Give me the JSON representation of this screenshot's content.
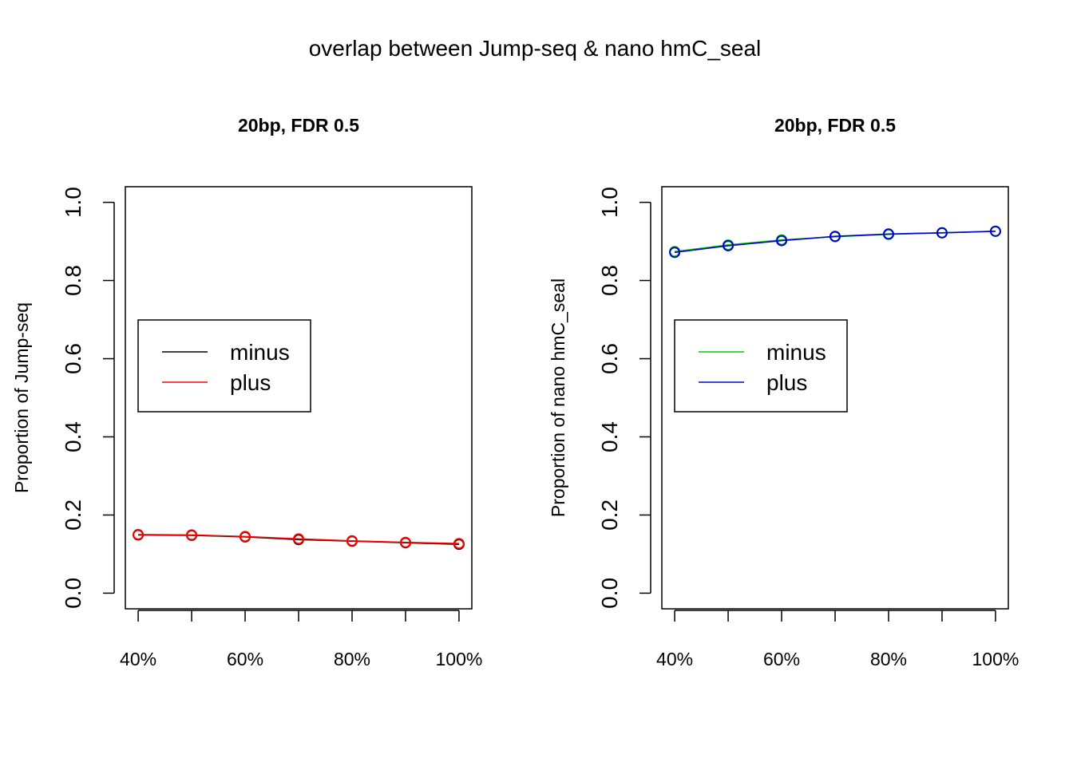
{
  "figure": {
    "title": "overlap between Jump-seq & nano hmC_seal"
  },
  "chart_data": [
    {
      "type": "line",
      "title": "20bp, FDR 0.5",
      "xlabel": "",
      "ylabel": "Proportion of Jump-seq",
      "x": [
        40,
        50,
        60,
        70,
        80,
        90,
        100
      ],
      "xlim": [
        37.6,
        102.4
      ],
      "x_tick_values": [
        40,
        50,
        60,
        70,
        80,
        90,
        100
      ],
      "x_tick_labels": [
        "40%",
        "60%",
        "80%",
        "100%"
      ],
      "x_tick_label_values": [
        40,
        60,
        80,
        100
      ],
      "ylim": [
        -0.04,
        1.04
      ],
      "y_ticks": [
        0.0,
        0.2,
        0.4,
        0.6,
        0.8,
        1.0
      ],
      "y_tick_labels": [
        "0.0",
        "0.2",
        "0.4",
        "0.6",
        "0.8",
        "1.0"
      ],
      "grid": false,
      "legend_position": "left, middle",
      "series": [
        {
          "name": "minus",
          "color": "#000000",
          "values": [
            0.149,
            0.148,
            0.144,
            0.137,
            0.133,
            0.129,
            0.125
          ]
        },
        {
          "name": "plus",
          "color": "#ff0000",
          "values": [
            0.15,
            0.149,
            0.145,
            0.139,
            0.134,
            0.13,
            0.127
          ]
        }
      ]
    },
    {
      "type": "line",
      "title": "20bp, FDR 0.5",
      "xlabel": "",
      "ylabel": "Proportion of nano hmC_seal",
      "x": [
        40,
        50,
        60,
        70,
        80,
        90,
        100
      ],
      "xlim": [
        37.6,
        102.4
      ],
      "x_tick_values": [
        40,
        50,
        60,
        70,
        80,
        90,
        100
      ],
      "x_tick_labels": [
        "40%",
        "60%",
        "80%",
        "100%"
      ],
      "x_tick_label_values": [
        40,
        60,
        80,
        100
      ],
      "ylim": [
        -0.04,
        1.04
      ],
      "y_ticks": [
        0.0,
        0.2,
        0.4,
        0.6,
        0.8,
        1.0
      ],
      "y_tick_labels": [
        "0.0",
        "0.2",
        "0.4",
        "0.6",
        "0.8",
        "1.0"
      ],
      "grid": false,
      "legend_position": "left, middle",
      "series": [
        {
          "name": "minus",
          "color": "#00cd00",
          "values": [
            0.874,
            0.891,
            0.904,
            0.912,
            0.918,
            0.922,
            0.926
          ]
        },
        {
          "name": "plus",
          "color": "#0000cd",
          "values": [
            0.872,
            0.889,
            0.902,
            0.913,
            0.919,
            0.922,
            0.926
          ]
        }
      ]
    }
  ]
}
